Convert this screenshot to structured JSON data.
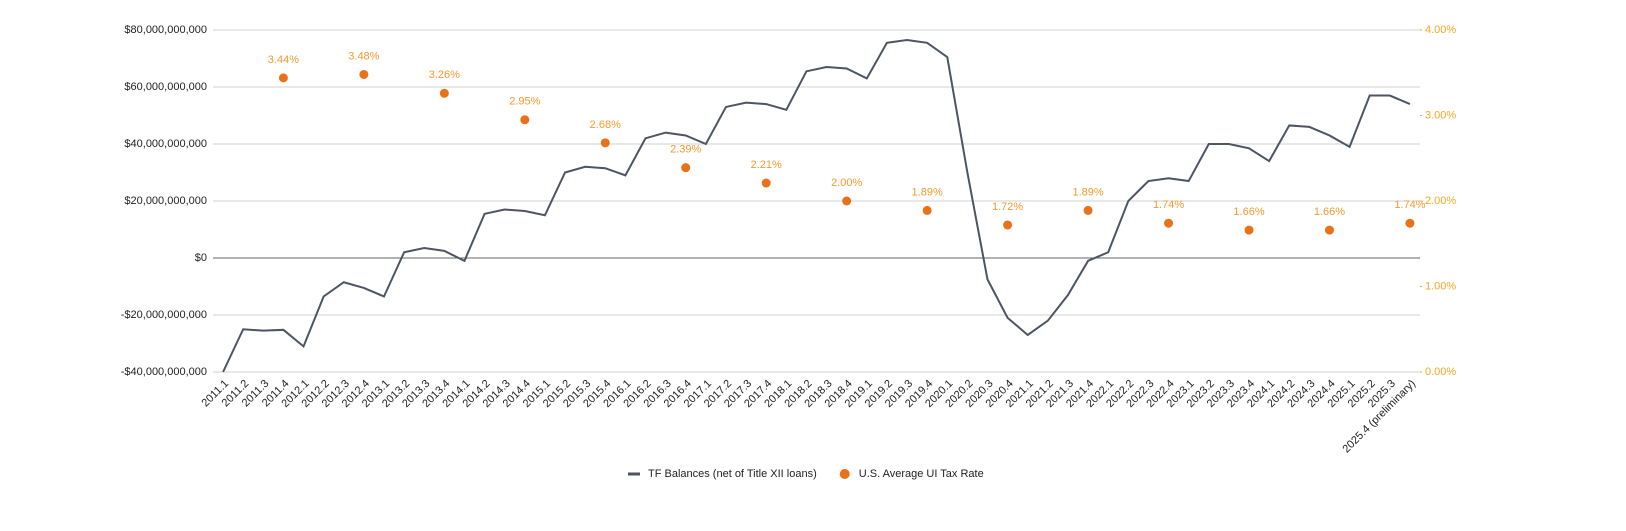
{
  "chart_data": {
    "type": "combo",
    "categories": [
      "2011.1",
      "2011.2",
      "2011.3",
      "2011.4",
      "2012.1",
      "2012.2",
      "2012.3",
      "2012.4",
      "2013.1",
      "2013.2",
      "2013.3",
      "2013.4",
      "2014.1",
      "2014.2",
      "2014.3",
      "2014.4",
      "2015.1",
      "2015.2",
      "2015.3",
      "2015.4",
      "2016.1",
      "2016.2",
      "2016.3",
      "2016.4",
      "2017.1",
      "2017.2",
      "2017.3",
      "2017.4",
      "2018.1",
      "2018.2",
      "2018.3",
      "2018.4",
      "2019.1",
      "2019.2",
      "2019.3",
      "2019.4",
      "2020.1",
      "2020.2",
      "2020.3",
      "2020.4",
      "2021.1",
      "2021.2",
      "2021.3",
      "2021.4",
      "2022.1",
      "2022.2",
      "2022.3",
      "2022.4",
      "2023.1",
      "2023.2",
      "2023.3",
      "2023.4",
      "2024.1",
      "2024.2",
      "2024.3",
      "2024.4",
      "2025.1",
      "2025.2",
      "2025.3",
      "2025.4 (preliminary)"
    ],
    "series": [
      {
        "name": "TF Balances (net of Title XII loans)",
        "type": "line",
        "color": "#4d5562",
        "axis": "y",
        "values": [
          -40000000000,
          -25000000000,
          -25500000000,
          -25200000000,
          -31000000000,
          -13500000000,
          -8500000000,
          -10500000000,
          -13500000000,
          2000000000,
          3500000000,
          2500000000,
          -1000000000,
          15500000000,
          17000000000,
          16500000000,
          15000000000,
          30000000000,
          32000000000,
          31500000000,
          29000000000,
          42000000000,
          44000000000,
          43000000000,
          40000000000,
          53000000000,
          54500000000,
          54000000000,
          52000000000,
          65500000000,
          67000000000,
          66500000000,
          63000000000,
          75500000000,
          76500000000,
          75500000000,
          70500000000,
          30000000000,
          -7500000000,
          -21000000000,
          -27000000000,
          -22000000000,
          -13000000000,
          -1000000000,
          2000000000,
          20000000000,
          27000000000,
          28000000000,
          27000000000,
          40000000000,
          40000000000,
          38500000000,
          34000000000,
          46500000000,
          46000000000,
          43000000000,
          39000000000,
          57000000000,
          57000000000,
          54000000000
        ]
      },
      {
        "name": "U.S. Average UI Tax Rate",
        "type": "scatter",
        "color": "#e8711a",
        "label_color": "#f39a2e",
        "axis": "y2",
        "values": [
          null,
          null,
          null,
          3.44,
          null,
          null,
          null,
          3.48,
          null,
          null,
          null,
          3.26,
          null,
          null,
          null,
          2.95,
          null,
          null,
          null,
          2.68,
          null,
          null,
          null,
          2.39,
          null,
          null,
          null,
          2.21,
          null,
          null,
          null,
          2.0,
          null,
          null,
          null,
          1.89,
          null,
          null,
          null,
          1.72,
          null,
          null,
          null,
          1.89,
          null,
          null,
          null,
          1.74,
          null,
          null,
          null,
          1.66,
          null,
          null,
          null,
          1.66,
          null,
          null,
          null,
          1.74
        ],
        "value_labels": [
          null,
          null,
          null,
          "3.44%",
          null,
          null,
          null,
          "3.48%",
          null,
          null,
          null,
          "3.26%",
          null,
          null,
          null,
          "2.95%",
          null,
          null,
          null,
          "2.68%",
          null,
          null,
          null,
          "2.39%",
          null,
          null,
          null,
          "2.21%",
          null,
          null,
          null,
          "2.00%",
          null,
          null,
          null,
          "1.89%",
          null,
          null,
          null,
          "1.72%",
          null,
          null,
          null,
          "1.89%",
          null,
          null,
          null,
          "1.74%",
          null,
          null,
          null,
          "1.66%",
          null,
          null,
          null,
          "1.66%",
          null,
          null,
          null,
          "1.74%"
        ]
      }
    ],
    "ylim": [
      -40000000000,
      80000000000
    ],
    "yticks": [
      {
        "value": -40000000000,
        "label": "-$40,000,000,000"
      },
      {
        "value": -20000000000,
        "label": "-$20,000,000,000"
      },
      {
        "value": 0,
        "label": "$0"
      },
      {
        "value": 20000000000,
        "label": "$20,000,000,000"
      },
      {
        "value": 40000000000,
        "label": "$40,000,000,000"
      },
      {
        "value": 60000000000,
        "label": "$60,000,000,000"
      },
      {
        "value": 80000000000,
        "label": "$80,000,000,000"
      }
    ],
    "y2lim": [
      0,
      4
    ],
    "y2ticks": [
      {
        "value": 0,
        "label": "0.00%"
      },
      {
        "value": 1,
        "label": "1.00%"
      },
      {
        "value": 2,
        "label": "2.00%"
      },
      {
        "value": 3,
        "label": "3.00%"
      },
      {
        "value": 4,
        "label": "4.00%"
      }
    ],
    "y2_color": "#f5a623",
    "grid": true,
    "legend": "bottom"
  }
}
